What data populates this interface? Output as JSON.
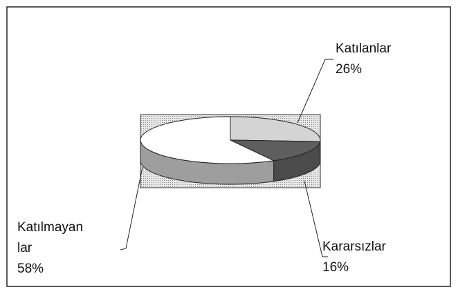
{
  "chart_data": {
    "type": "pie3d",
    "categories": [
      "Katılanlar",
      "Kararsızlar",
      "Katılmayan\nlar"
    ],
    "values": [
      26,
      16,
      58
    ],
    "value_labels": [
      "26%",
      "16%",
      "58%"
    ],
    "colors": [
      "#d4d4d4",
      "#5e5e5e",
      "#ffffff"
    ]
  }
}
